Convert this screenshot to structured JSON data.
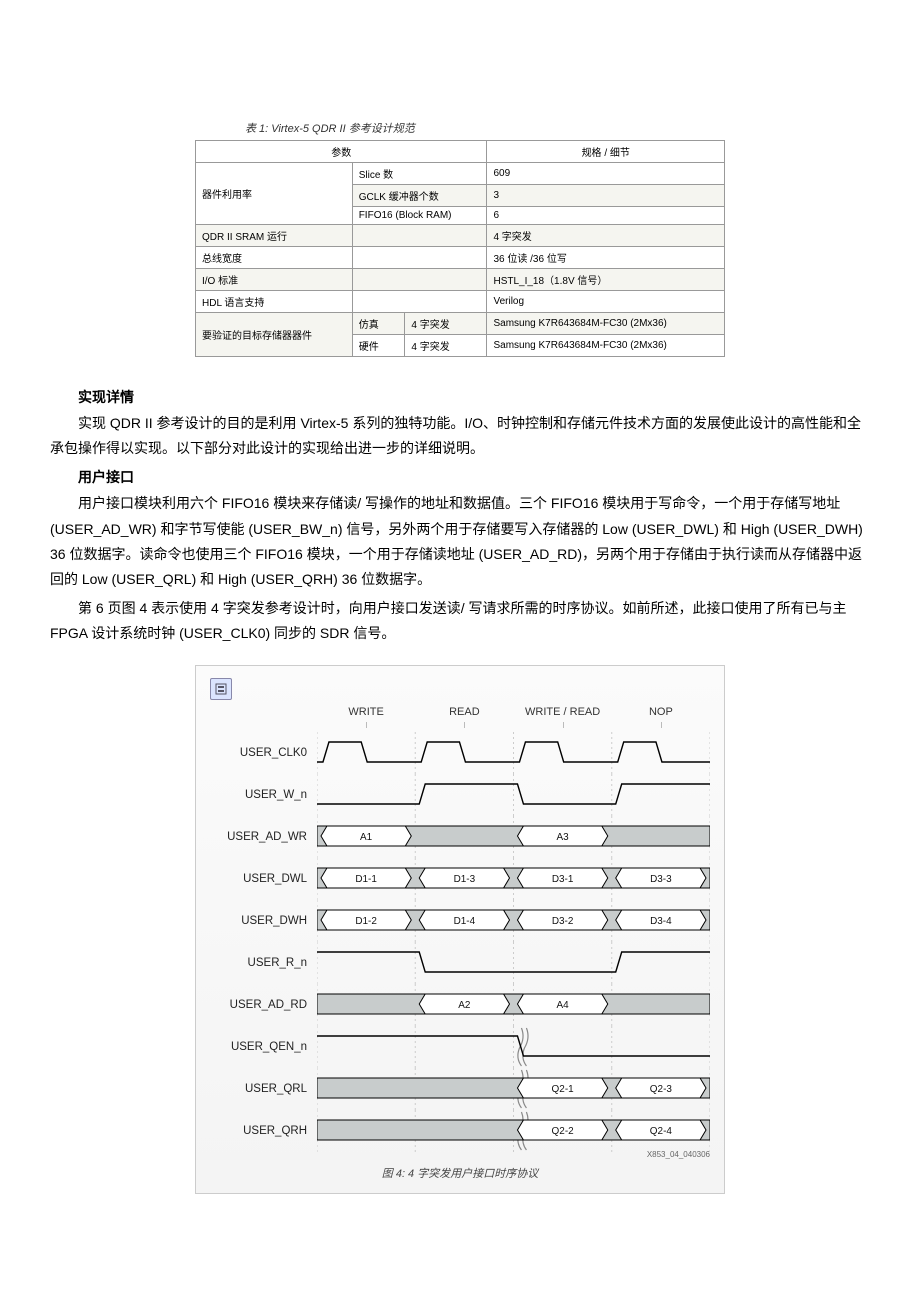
{
  "table": {
    "caption": "表 1: Virtex-5 QDR II 参考设计规范",
    "header_param": "参数",
    "header_spec": "规格 / 细节",
    "rows": [
      {
        "param": "器件利用率",
        "sub": "Slice 数",
        "spec": "609"
      },
      {
        "param": "",
        "sub": "GCLK 缓冲器个数",
        "spec": "3"
      },
      {
        "param": "",
        "sub": "FIFO16 (Block RAM)",
        "spec": "6"
      },
      {
        "param": "QDR II SRAM 运行",
        "sub": "",
        "spec": "4 字突发"
      },
      {
        "param": "总线宽度",
        "sub": "",
        "spec": "36 位读 /36 位写"
      },
      {
        "param": "I/O 标准",
        "sub": "",
        "spec": "HSTL_I_18（1.8V 信号）"
      },
      {
        "param": "HDL 语言支持",
        "sub": "",
        "spec": "Verilog"
      },
      {
        "param": "要验证的目标存储器器件",
        "sub1": "仿真",
        "sub2": "4 字突发",
        "spec": "Samsung K7R643684M-FC30 (2Mx36)"
      },
      {
        "param": "",
        "sub1": "硬件",
        "sub2": "4 字突发",
        "spec": "Samsung K7R643684M-FC30 (2Mx36)"
      }
    ]
  },
  "sections": {
    "s1_head": "实现详情",
    "s1_p1": "实现 QDR II 参考设计的目的是利用 Virtex-5 系列的独特功能。I/O、时钟控制和存储元件技术方面的发展使此设计的高性能和全承包操作得以实现。以下部分对此设计的实现给出进一步的详细说明。",
    "s2_head": "用户接口",
    "s2_p1": "用户接口模块利用六个 FIFO16 模块来存储读/ 写操作的地址和数据值。三个 FIFO16 模块用于写命令，一个用于存储写地址 (USER_AD_WR) 和字节写使能 (USER_BW_n) 信号，另外两个用于存储要写入存储器的 Low (USER_DWL) 和 High (USER_DWH) 36 位数据字。读命令也使用三个 FIFO16 模块，一个用于存储读地址 (USER_AD_RD)，另两个用于存储由于执行读而从存储器中返回的 Low (USER_QRL) 和 High (USER_QRH) 36 位数据字。",
    "s2_p2": "第 6 页图 4 表示使用 4 字突发参考设计时，向用户接口发送读/ 写请求所需的时序协议。如前所述，此接口使用了所有已与主 FPGA 设计系统时钟 (USER_CLK0) 同步的 SDR 信号。"
  },
  "timing": {
    "phases": [
      "WRITE",
      "READ",
      "WRITE / READ",
      "NOP"
    ],
    "signals": [
      "USER_CLK0",
      "USER_W_n",
      "USER_AD_WR",
      "USER_DWL",
      "USER_DWH",
      "USER_R_n",
      "USER_AD_RD",
      "USER_QEN_n",
      "USER_QRL",
      "USER_QRH"
    ],
    "bus_values": {
      "USER_AD_WR": [
        "A1",
        "",
        "A3",
        ""
      ],
      "USER_DWL": [
        "D1-1",
        "D1-3",
        "D3-1",
        "D3-3"
      ],
      "USER_DWH": [
        "D1-2",
        "D1-4",
        "D3-2",
        "D3-4"
      ],
      "USER_AD_RD": [
        "",
        "A2",
        "A4",
        ""
      ],
      "USER_QRL": [
        "",
        "",
        "Q2-1",
        "Q2-3"
      ],
      "USER_QRH": [
        "",
        "",
        "Q2-2",
        "Q2-4"
      ]
    },
    "colors": {
      "bus_idle_fill": "#c8cccc",
      "bus_valid_fill": "#ffffff",
      "stroke": "#000000",
      "guide": "#cccccc",
      "break_stroke": "#888888"
    },
    "fig_caption": "图 4: 4 字突发用户接口时序协议",
    "ref_tag": "X853_04_040306"
  }
}
